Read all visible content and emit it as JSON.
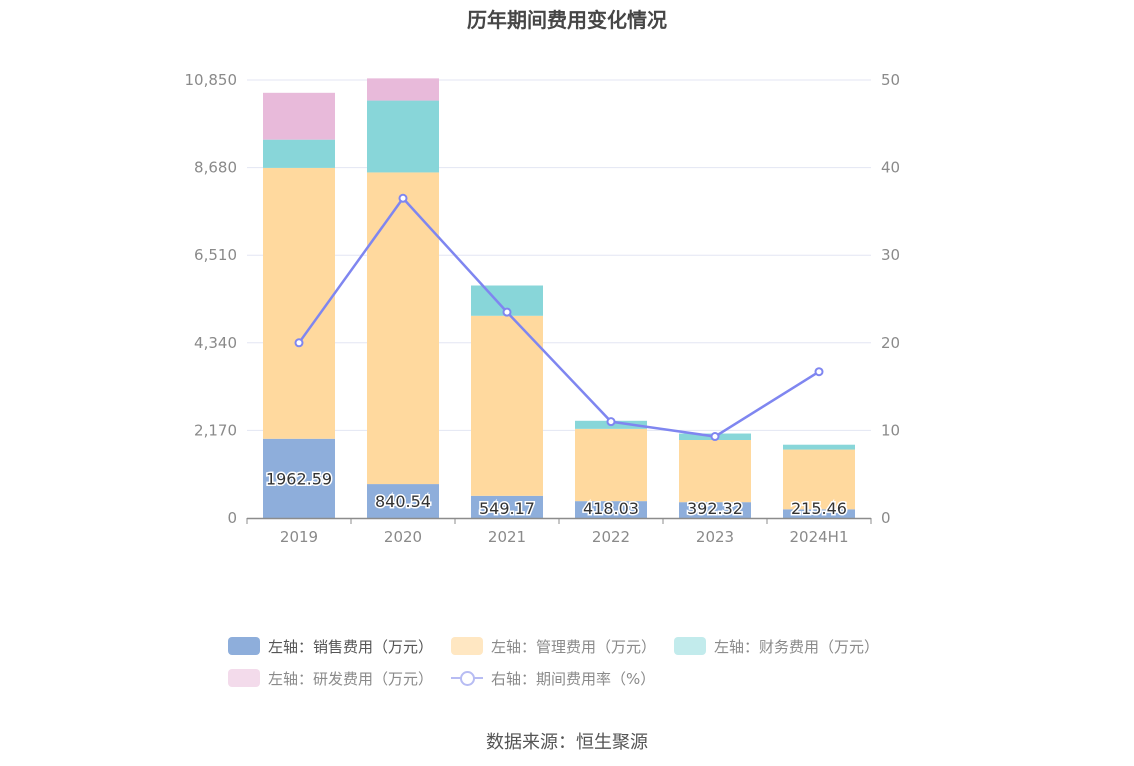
{
  "title": "历年期间费用变化情况",
  "source": "数据来源：恒生聚源",
  "chart_data": {
    "type": "bar",
    "stacked": true,
    "categories": [
      "2019",
      "2020",
      "2021",
      "2022",
      "2023",
      "2024H1"
    ],
    "y_left": {
      "ticks": [
        "0",
        "2,170",
        "4,340",
        "6,510",
        "8,680",
        "10,850"
      ],
      "ylim": [
        0,
        10850
      ]
    },
    "y_right": {
      "ticks": [
        "0",
        "10",
        "20",
        "30",
        "40",
        "50"
      ],
      "ylim": [
        0,
        50
      ]
    },
    "grid": true,
    "legend_position": "bottom",
    "series": [
      {
        "name": "左轴：销售费用（万元）",
        "color": "#8eaedb",
        "values": [
          1962.59,
          840.54,
          549.17,
          418.03,
          392.32,
          215.46
        ],
        "labels": [
          "1962.59",
          "840.54",
          "549.17",
          "418.03",
          "392.32",
          "215.46"
        ]
      },
      {
        "name": "左轴：管理费用（万元）",
        "color": "#ffd99e",
        "values": [
          6710,
          7720,
          4460,
          1790,
          1540,
          1480
        ]
      },
      {
        "name": "左轴：财务费用（万元）",
        "color": "#88d6d9",
        "values": [
          700,
          1780,
          750,
          200,
          160,
          120
        ]
      },
      {
        "name": "左轴：研发费用（万元）",
        "color": "#e8bada",
        "values": [
          1160,
          550,
          0,
          0,
          0,
          0
        ]
      }
    ],
    "line": {
      "name": "右轴：期间费用率（%）",
      "color": "#7f86f0",
      "values": [
        20.0,
        36.5,
        23.5,
        11.0,
        9.3,
        16.7
      ]
    }
  }
}
